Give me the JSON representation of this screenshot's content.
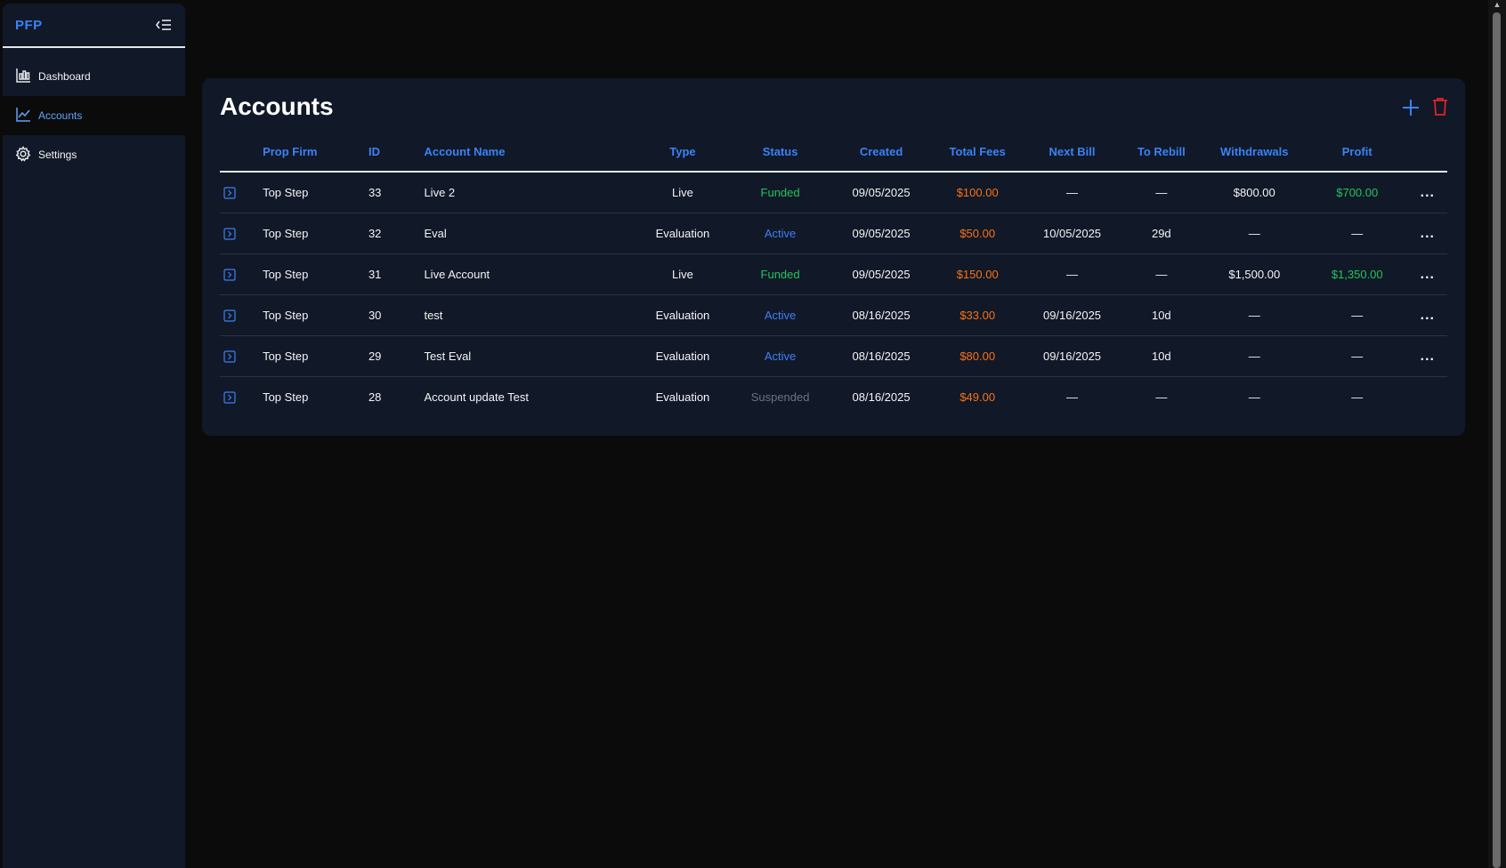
{
  "app": {
    "brand": "PFP"
  },
  "sidebar": {
    "items": [
      {
        "label": "Dashboard",
        "icon": "dashboard-icon"
      },
      {
        "label": "Accounts",
        "icon": "chart-line-icon",
        "active": true
      },
      {
        "label": "Settings",
        "icon": "gear-icon"
      }
    ]
  },
  "page": {
    "title": "Accounts"
  },
  "colors": {
    "accent": "#3b82f6",
    "funded": "#22c55e",
    "fee": "#f97316",
    "danger": "#dc2626"
  },
  "table": {
    "headers": {
      "prop_firm": "Prop Firm",
      "id": "ID",
      "account_name": "Account Name",
      "type": "Type",
      "status": "Status",
      "created": "Created",
      "total_fees": "Total Fees",
      "next_bill": "Next Bill",
      "to_rebill": "To Rebill",
      "withdrawals": "Withdrawals",
      "profit": "Profit"
    },
    "rows": [
      {
        "prop_firm": "Top Step",
        "id": "33",
        "account_name": "Live 2",
        "type": "Live",
        "status": "Funded",
        "created": "09/05/2025",
        "total_fees": "$100.00",
        "next_bill": "—",
        "to_rebill": "—",
        "withdrawals": "$800.00",
        "profit": "$700.00",
        "menu": "..."
      },
      {
        "prop_firm": "Top Step",
        "id": "32",
        "account_name": "Eval",
        "type": "Evaluation",
        "status": "Active",
        "created": "09/05/2025",
        "total_fees": "$50.00",
        "next_bill": "10/05/2025",
        "to_rebill": "29d",
        "withdrawals": "—",
        "profit": "—",
        "menu": "..."
      },
      {
        "prop_firm": "Top Step",
        "id": "31",
        "account_name": "Live Account",
        "type": "Live",
        "status": "Funded",
        "created": "09/05/2025",
        "total_fees": "$150.00",
        "next_bill": "—",
        "to_rebill": "—",
        "withdrawals": "$1,500.00",
        "profit": "$1,350.00",
        "menu": "..."
      },
      {
        "prop_firm": "Top Step",
        "id": "30",
        "account_name": "test",
        "type": "Evaluation",
        "status": "Active",
        "created": "08/16/2025",
        "total_fees": "$33.00",
        "next_bill": "09/16/2025",
        "to_rebill": "10d",
        "withdrawals": "—",
        "profit": "—",
        "menu": "..."
      },
      {
        "prop_firm": "Top Step",
        "id": "29",
        "account_name": "Test Eval",
        "type": "Evaluation",
        "status": "Active",
        "created": "08/16/2025",
        "total_fees": "$80.00",
        "next_bill": "09/16/2025",
        "to_rebill": "10d",
        "withdrawals": "—",
        "profit": "—",
        "menu": "..."
      },
      {
        "prop_firm": "Top Step",
        "id": "28",
        "account_name": "Account update Test",
        "type": "Evaluation",
        "status": "Suspended",
        "created": "08/16/2025",
        "total_fees": "$49.00",
        "next_bill": "—",
        "to_rebill": "—",
        "withdrawals": "—",
        "profit": "—",
        "menu": ""
      }
    ]
  }
}
